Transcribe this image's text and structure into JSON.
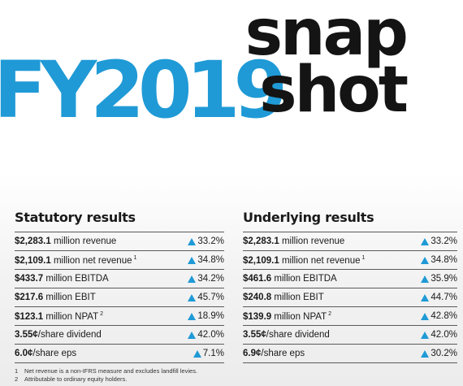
{
  "hero": {
    "fy": "FY2019",
    "snap": "snap",
    "shot": "shot"
  },
  "statutory": {
    "title": "Statutory results",
    "rows": [
      {
        "value": "$2,283.1",
        "label": " million revenue",
        "sup": "",
        "change": "33.2%"
      },
      {
        "value": "$2,109.1",
        "label": " million net revenue",
        "sup": "1",
        "change": "34.8%"
      },
      {
        "value": "$433.7",
        "label": " million EBITDA",
        "sup": "",
        "change": "34.2%"
      },
      {
        "value": "$217.6",
        "label": " million EBIT",
        "sup": "",
        "change": "45.7%"
      },
      {
        "value": "$123.1",
        "label": " million NPAT",
        "sup": "2",
        "change": "18.9%"
      },
      {
        "value": "3.55¢",
        "label": "/share dividend",
        "sup": "",
        "change": "42.0%"
      },
      {
        "value": "6.0¢",
        "label": "/share eps",
        "sup": "",
        "change": "7.1%"
      }
    ]
  },
  "underlying": {
    "title": "Underlying results",
    "rows": [
      {
        "value": "$2,283.1",
        "label": " million revenue",
        "sup": "",
        "change": "33.2%"
      },
      {
        "value": "$2,109.1",
        "label": " million net revenue",
        "sup": "1",
        "change": "34.8%"
      },
      {
        "value": "$461.6",
        "label": " million EBITDA",
        "sup": "",
        "change": "35.9%"
      },
      {
        "value": "$240.8",
        "label": " million EBIT",
        "sup": "",
        "change": "44.7%"
      },
      {
        "value": "$139.9",
        "label": " million NPAT",
        "sup": "2",
        "change": "42.8%"
      },
      {
        "value": "3.55¢",
        "label": "/share dividend",
        "sup": "",
        "change": "42.0%"
      },
      {
        "value": "6.9¢",
        "label": "/share eps",
        "sup": "",
        "change": "30.2%"
      }
    ]
  },
  "footnotes": [
    {
      "num": "1",
      "text": "Net revenue is a non-IFRS measure and excludes landfill levies."
    },
    {
      "num": "2",
      "text": "Attributable to ordinary equity holders."
    }
  ],
  "colors": {
    "accent": "#1f9ad6",
    "text": "#1a1a1a"
  },
  "icons": {
    "change": "up-triangle-icon"
  }
}
